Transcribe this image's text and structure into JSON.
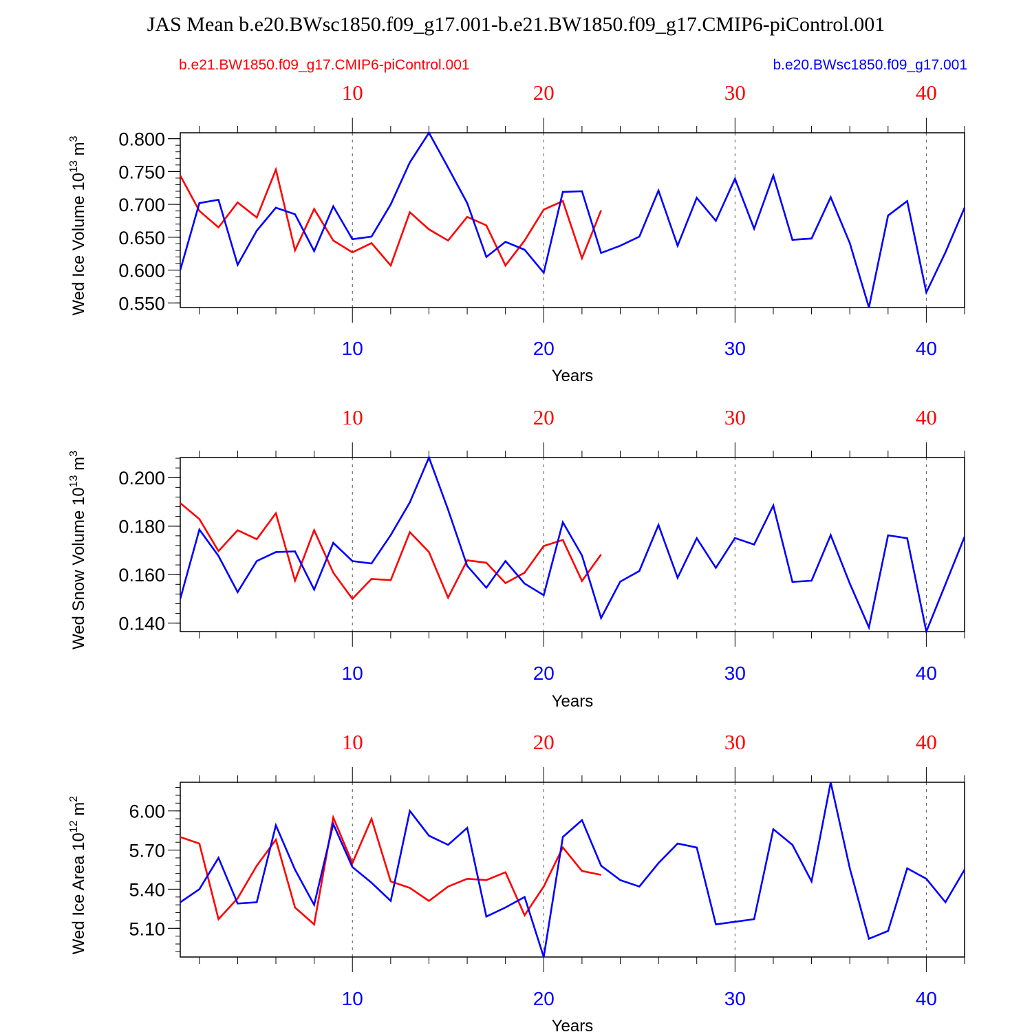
{
  "figure": {
    "title": "JAS Mean b.e20.BWsc1850.f09_g17.001-b.e21.BW1850.f09_g17.CMIP6-piControl.001",
    "legend_left": "b.e21.BW1850.f09_g17.CMIP6-piControl.001",
    "legend_right": "b.e20.BWsc1850.f09_g17.001"
  },
  "colors": {
    "red": "#ff0000",
    "blue": "#0000ff",
    "axis": "#000000",
    "grid": "#555555"
  },
  "chart_data": [
    {
      "type": "line",
      "ylabel": "Wed Ice Volume 10",
      "ylabel_exp": "13",
      "ylabel_unit": " m",
      "ylabel_unit_exp": "3",
      "xlabel": "Years",
      "xlim": [
        1,
        42
      ],
      "ylim": [
        0.543,
        0.809
      ],
      "yticks": [
        0.55,
        0.6,
        0.65,
        0.7,
        0.75,
        0.8
      ],
      "ytick_labels": [
        "0.550",
        "0.600",
        "0.650",
        "0.700",
        "0.750",
        "0.800"
      ],
      "top_xtick_labels": [
        "10",
        "20",
        "30",
        "40"
      ],
      "bottom_xtick_labels": [
        "10",
        "20",
        "30",
        "40"
      ],
      "series": [
        {
          "name": "b.e21.BW1850.f09_g17.CMIP6-piControl.001",
          "color": "red",
          "x": [
            1,
            2,
            3,
            4,
            5,
            6,
            7,
            8,
            9,
            10,
            11,
            12,
            13,
            14,
            15,
            16,
            17,
            18,
            19,
            20,
            21,
            22,
            23
          ],
          "values": [
            0.744,
            0.69,
            0.665,
            0.703,
            0.68,
            0.753,
            0.63,
            0.693,
            0.645,
            0.627,
            0.641,
            0.607,
            0.688,
            0.662,
            0.645,
            0.681,
            0.668,
            0.607,
            0.645,
            0.692,
            0.705,
            0.618,
            0.691
          ]
        },
        {
          "name": "b.e20.BWsc1850.f09_g17.001",
          "color": "blue",
          "x": [
            1,
            2,
            3,
            4,
            5,
            6,
            7,
            8,
            9,
            10,
            11,
            12,
            13,
            14,
            15,
            16,
            17,
            18,
            19,
            20,
            21,
            22,
            23,
            24,
            25,
            26,
            27,
            28,
            29,
            30,
            31,
            32,
            33,
            34,
            35,
            36,
            37,
            38,
            39,
            40,
            41,
            42
          ],
          "values": [
            0.6,
            0.702,
            0.707,
            0.608,
            0.66,
            0.695,
            0.685,
            0.629,
            0.697,
            0.647,
            0.651,
            0.7,
            0.764,
            0.809,
            0.756,
            0.702,
            0.62,
            0.643,
            0.631,
            0.596,
            0.719,
            0.72,
            0.626,
            0.637,
            0.651,
            0.721,
            0.637,
            0.71,
            0.675,
            0.739,
            0.663,
            0.744,
            0.646,
            0.648,
            0.711,
            0.641,
            0.543,
            0.683,
            0.705,
            0.566,
            0.627,
            0.695
          ]
        }
      ]
    },
    {
      "type": "line",
      "ylabel": "Wed Snow Volume 10",
      "ylabel_exp": "13",
      "ylabel_unit": " m",
      "ylabel_unit_exp": "3",
      "xlabel": "Years",
      "xlim": [
        1,
        42
      ],
      "ylim": [
        0.1365,
        0.2083
      ],
      "yticks": [
        0.14,
        0.16,
        0.18,
        0.2
      ],
      "ytick_labels": [
        "0.140",
        "0.160",
        "0.180",
        "0.200"
      ],
      "top_xtick_labels": [
        "10",
        "20",
        "30",
        "40"
      ],
      "bottom_xtick_labels": [
        "10",
        "20",
        "30",
        "40"
      ],
      "series": [
        {
          "name": "b.e21.BW1850.f09_g17.CMIP6-piControl.001",
          "color": "red",
          "x": [
            1,
            2,
            3,
            4,
            5,
            6,
            7,
            8,
            9,
            10,
            11,
            12,
            13,
            14,
            15,
            16,
            17,
            18,
            19,
            20,
            21,
            22,
            23
          ],
          "values": [
            0.1895,
            0.1829,
            0.1697,
            0.1783,
            0.1746,
            0.1853,
            0.1575,
            0.1783,
            0.1608,
            0.15,
            0.1582,
            0.1577,
            0.1775,
            0.1693,
            0.1505,
            0.1659,
            0.1649,
            0.1565,
            0.1608,
            0.1718,
            0.1743,
            0.1574,
            0.1683
          ]
        },
        {
          "name": "b.e20.BWsc1850.f09_g17.001",
          "color": "blue",
          "x": [
            1,
            2,
            3,
            4,
            5,
            6,
            7,
            8,
            9,
            10,
            11,
            12,
            13,
            14,
            15,
            16,
            17,
            18,
            19,
            20,
            21,
            22,
            23,
            24,
            25,
            26,
            27,
            28,
            29,
            30,
            31,
            32,
            33,
            34,
            35,
            36,
            37,
            38,
            39,
            40,
            41,
            42
          ],
          "values": [
            0.15,
            0.1786,
            0.1677,
            0.1528,
            0.1656,
            0.1693,
            0.1696,
            0.1538,
            0.1731,
            0.1656,
            0.1646,
            0.1763,
            0.1898,
            0.2083,
            0.1868,
            0.1636,
            0.1546,
            0.1656,
            0.1563,
            0.1515,
            0.1816,
            0.1679,
            0.1421,
            0.1571,
            0.1615,
            0.1805,
            0.1587,
            0.175,
            0.1628,
            0.1751,
            0.1724,
            0.1885,
            0.157,
            0.1575,
            0.1763,
            0.1563,
            0.1382,
            0.1762,
            0.175,
            0.1365,
            0.156,
            0.1756
          ]
        }
      ]
    },
    {
      "type": "line",
      "ylabel": "Wed Ice Area 10",
      "ylabel_exp": "12",
      "ylabel_unit": " m",
      "ylabel_unit_exp": "2",
      "xlabel": "Years",
      "xlim": [
        1,
        42
      ],
      "ylim": [
        4.88,
        6.22
      ],
      "yticks": [
        5.1,
        5.4,
        5.7,
        6.0
      ],
      "ytick_labels": [
        "5.10",
        "5.40",
        "5.70",
        "6.00"
      ],
      "top_xtick_labels": [
        "10",
        "20",
        "30",
        "40"
      ],
      "bottom_xtick_labels": [
        "10",
        "20",
        "30",
        "40"
      ],
      "series": [
        {
          "name": "b.e21.BW1850.f09_g17.CMIP6-piControl.001",
          "color": "red",
          "x": [
            1,
            2,
            3,
            4,
            5,
            6,
            7,
            8,
            9,
            10,
            11,
            12,
            13,
            14,
            15,
            16,
            17,
            18,
            19,
            20,
            21,
            22,
            23
          ],
          "values": [
            5.8,
            5.75,
            5.17,
            5.33,
            5.58,
            5.78,
            5.26,
            5.13,
            5.95,
            5.6,
            5.94,
            5.46,
            5.41,
            5.31,
            5.42,
            5.48,
            5.47,
            5.53,
            5.2,
            5.42,
            5.72,
            5.54,
            5.51
          ]
        },
        {
          "name": "b.e20.BWsc1850.f09_g17.001",
          "color": "blue",
          "x": [
            1,
            2,
            3,
            4,
            5,
            6,
            7,
            8,
            9,
            10,
            11,
            12,
            13,
            14,
            15,
            16,
            17,
            18,
            19,
            20,
            21,
            22,
            23,
            24,
            25,
            26,
            27,
            28,
            29,
            30,
            31,
            32,
            33,
            34,
            35,
            36,
            37,
            38,
            39,
            40,
            41,
            42
          ],
          "values": [
            5.3,
            5.4,
            5.64,
            5.29,
            5.3,
            5.89,
            5.55,
            5.28,
            5.9,
            5.57,
            5.45,
            5.31,
            6.0,
            5.81,
            5.74,
            5.87,
            5.19,
            5.26,
            5.34,
            4.88,
            5.8,
            5.93,
            5.58,
            5.47,
            5.42,
            5.6,
            5.75,
            5.72,
            5.13,
            5.15,
            5.17,
            5.86,
            5.74,
            5.46,
            6.22,
            5.56,
            5.02,
            5.08,
            5.56,
            5.48,
            5.3,
            5.55
          ]
        }
      ]
    }
  ]
}
